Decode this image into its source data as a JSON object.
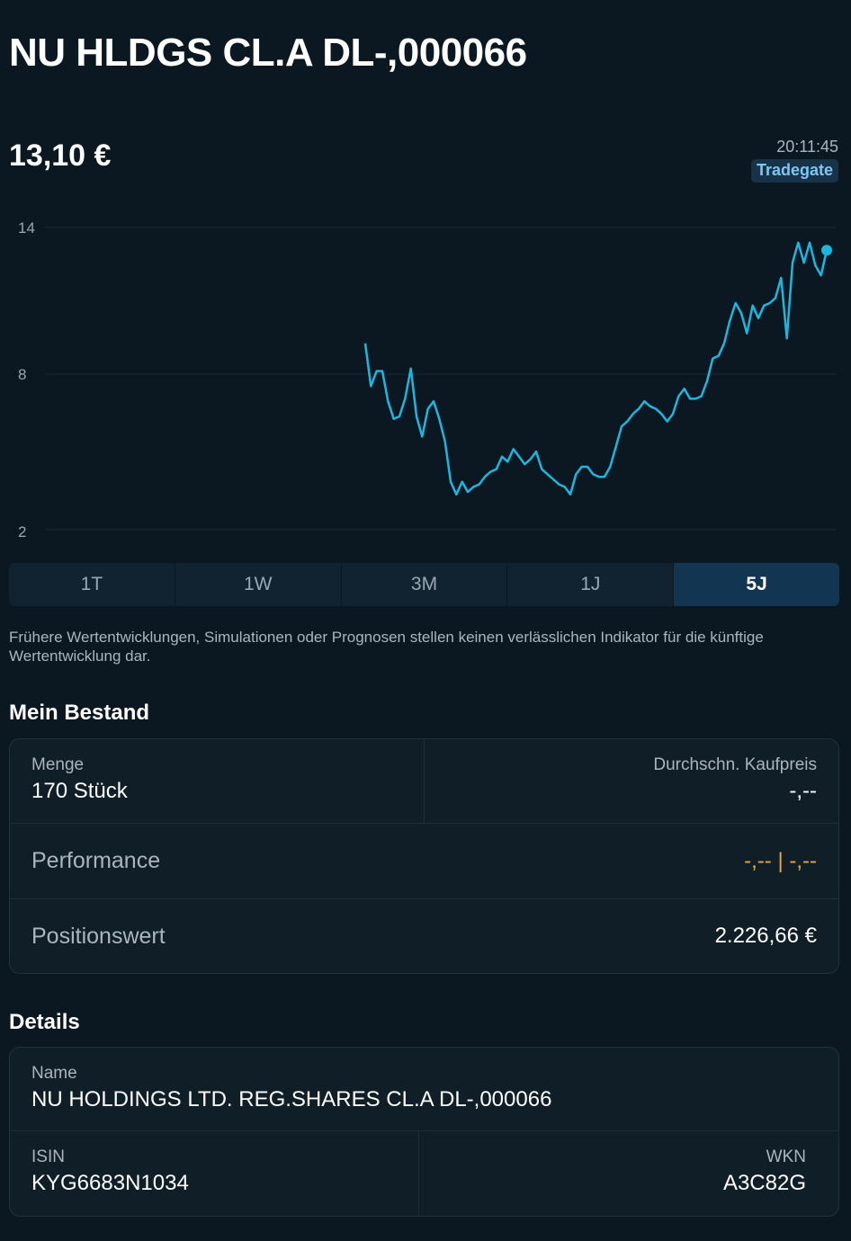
{
  "header": {
    "title": "NU HLDGS CL.A DL-,000066",
    "price": "13,10 €",
    "timestamp": "20:11:45",
    "exchange": "Tradegate"
  },
  "chart_data": {
    "type": "line",
    "y_ticks": [
      "14",
      "8",
      "2"
    ],
    "ylim": [
      2,
      14
    ],
    "grid": true,
    "line_color": "#1ab8df",
    "series": [
      {
        "values": [
          9.4,
          7.7,
          8.3,
          8.3,
          7.1,
          6.4,
          6.5,
          7.2,
          8.4,
          6.5,
          5.7,
          6.8,
          7.1,
          6.4,
          5.5,
          3.9,
          3.4,
          3.9,
          3.5,
          3.7,
          3.8,
          4.1,
          4.3,
          4.4,
          4.9,
          4.7,
          5.2,
          4.9,
          4.6,
          4.8,
          5.1,
          4.4,
          4.2,
          4.0,
          3.8,
          3.7,
          3.4,
          4.2,
          4.5,
          4.5,
          4.2,
          4.1,
          4.1,
          4.5,
          5.3,
          6.1,
          6.3,
          6.6,
          6.8,
          7.1,
          6.9,
          6.8,
          6.6,
          6.3,
          6.6,
          7.3,
          7.6,
          7.2,
          7.2,
          7.3,
          7.9,
          8.8,
          8.9,
          9.4,
          10.3,
          11.0,
          10.6,
          9.8,
          10.9,
          10.4,
          10.9,
          11.0,
          11.2,
          12.0,
          9.6,
          12.6,
          13.4,
          12.6,
          13.4,
          12.5,
          12.1,
          13.1
        ]
      }
    ]
  },
  "periods": [
    "1T",
    "1W",
    "3M",
    "1J",
    "5J"
  ],
  "active_period": "5J",
  "disclaimer": "Frühere Wertentwicklungen, Simulationen oder Prognosen stellen keinen verlässlichen Indikator für die künftige Wertentwicklung dar.",
  "holdings": {
    "heading": "Mein Bestand",
    "quantity_label": "Menge",
    "quantity_value": "170 Stück",
    "avg_price_label": "Durchschn. Kaufpreis",
    "avg_price_value": "-,--",
    "performance_label": "Performance",
    "performance_value": "-,-- | -,--",
    "position_label": "Positionswert",
    "position_value": "2.226,66 €"
  },
  "details": {
    "heading": "Details",
    "name_label": "Name",
    "name_value": "NU HOLDINGS LTD. REG.SHARES CL.A DL-,000066",
    "isin_label": "ISIN",
    "isin_value": "KYG6683N1034",
    "wkn_label": "WKN",
    "wkn_value": "A3C82G"
  },
  "colors": {
    "background": "#0b1821",
    "accent": "#1ab8df",
    "badge_text": "#7cc6f5",
    "performance": "#e7a83a"
  }
}
